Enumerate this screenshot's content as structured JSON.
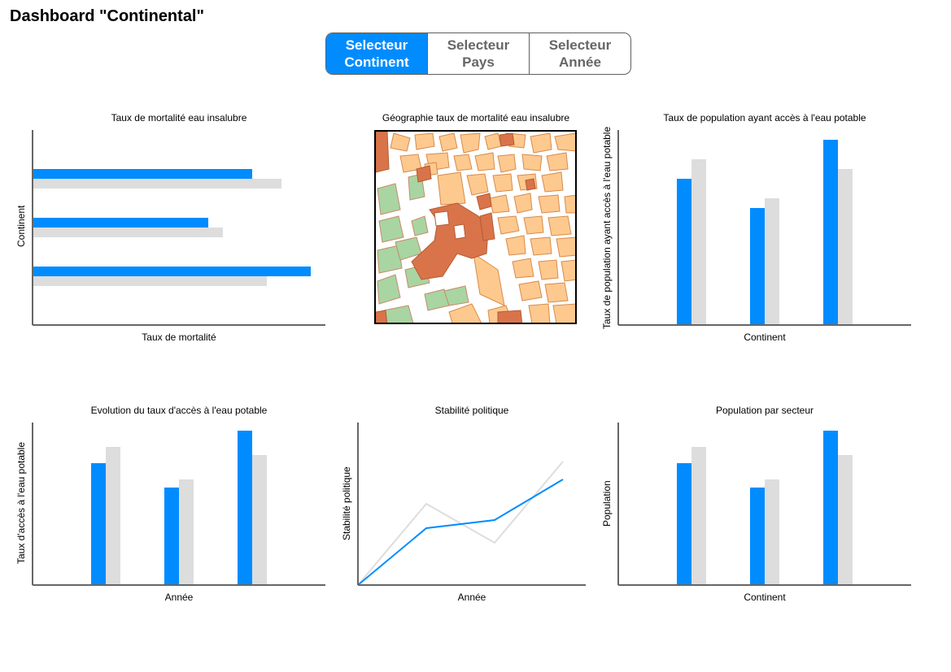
{
  "header": {
    "title": "Dashboard \"Continental\""
  },
  "selector": {
    "tabs": [
      {
        "line1": "Selecteur",
        "line2": "Continent",
        "active": true
      },
      {
        "line1": "Selecteur",
        "line2": "Pays",
        "active": false
      },
      {
        "line1": "Selecteur",
        "line2": "Année",
        "active": false
      }
    ]
  },
  "colors": {
    "primary": "#008cff",
    "secondary": "#dddddd",
    "axis": "#666666"
  },
  "panels": {
    "mortality": {
      "title": "Taux de mortalité eau insalubre",
      "xlabel": "Taux de mortalité",
      "ylabel": "Continent"
    },
    "map": {
      "title": "Géographie taux de mortalité eau insalubre",
      "icon": "city-map-image"
    },
    "access": {
      "title": "Taux de population ayant accès à l'eau potable",
      "xlabel": "Continent",
      "ylabel": "Taux de population ayant accès à l'eau potable"
    },
    "evolution": {
      "title": "Evolution du taux d'accès à l'eau potable",
      "xlabel": "Année",
      "ylabel": "Taux d'accès à l'eau potable"
    },
    "stability": {
      "title": "Stabilité politique",
      "xlabel": "Année",
      "ylabel": "Stabilité politique"
    },
    "sector": {
      "title": "Population par secteur",
      "xlabel": "Continent",
      "ylabel": "Population"
    }
  },
  "chart_data": [
    {
      "type": "bar",
      "orientation": "horizontal",
      "title": "Taux de mortalité eau insalubre",
      "xlabel": "Taux de mortalité",
      "ylabel": "Continent",
      "xlim": [
        0,
        100
      ],
      "series": [
        {
          "values": [
            75,
            60,
            95
          ]
        },
        {
          "values": [
            85,
            65,
            80
          ]
        }
      ]
    },
    {
      "type": "bar",
      "title": "Taux de population ayant accès à l'eau potable",
      "xlabel": "Continent",
      "ylabel": "Taux de population ayant accès à l'eau potable",
      "ylim": [
        0,
        100
      ],
      "series": [
        {
          "values": [
            75,
            60,
            95
          ]
        },
        {
          "values": [
            85,
            65,
            80
          ]
        }
      ]
    },
    {
      "type": "bar",
      "title": "Evolution du taux d'accès à l'eau potable",
      "xlabel": "Année",
      "ylabel": "Taux d'accès à l'eau potable",
      "ylim": [
        0,
        100
      ],
      "series": [
        {
          "values": [
            75,
            60,
            95
          ]
        },
        {
          "values": [
            85,
            65,
            80
          ]
        }
      ]
    },
    {
      "type": "line",
      "title": "Stabilité politique",
      "xlabel": "Année",
      "ylabel": "Stabilité politique",
      "x": [
        0,
        1,
        2,
        3
      ],
      "ylim": [
        0,
        100
      ],
      "series": [
        {
          "values": [
            0,
            35,
            40,
            65
          ]
        },
        {
          "values": [
            0,
            50,
            26,
            76
          ]
        }
      ]
    },
    {
      "type": "bar",
      "title": "Population par secteur",
      "xlabel": "Continent",
      "ylabel": "Population",
      "ylim": [
        0,
        100
      ],
      "series": [
        {
          "values": [
            75,
            60,
            95
          ]
        },
        {
          "values": [
            85,
            65,
            80
          ]
        }
      ]
    }
  ]
}
